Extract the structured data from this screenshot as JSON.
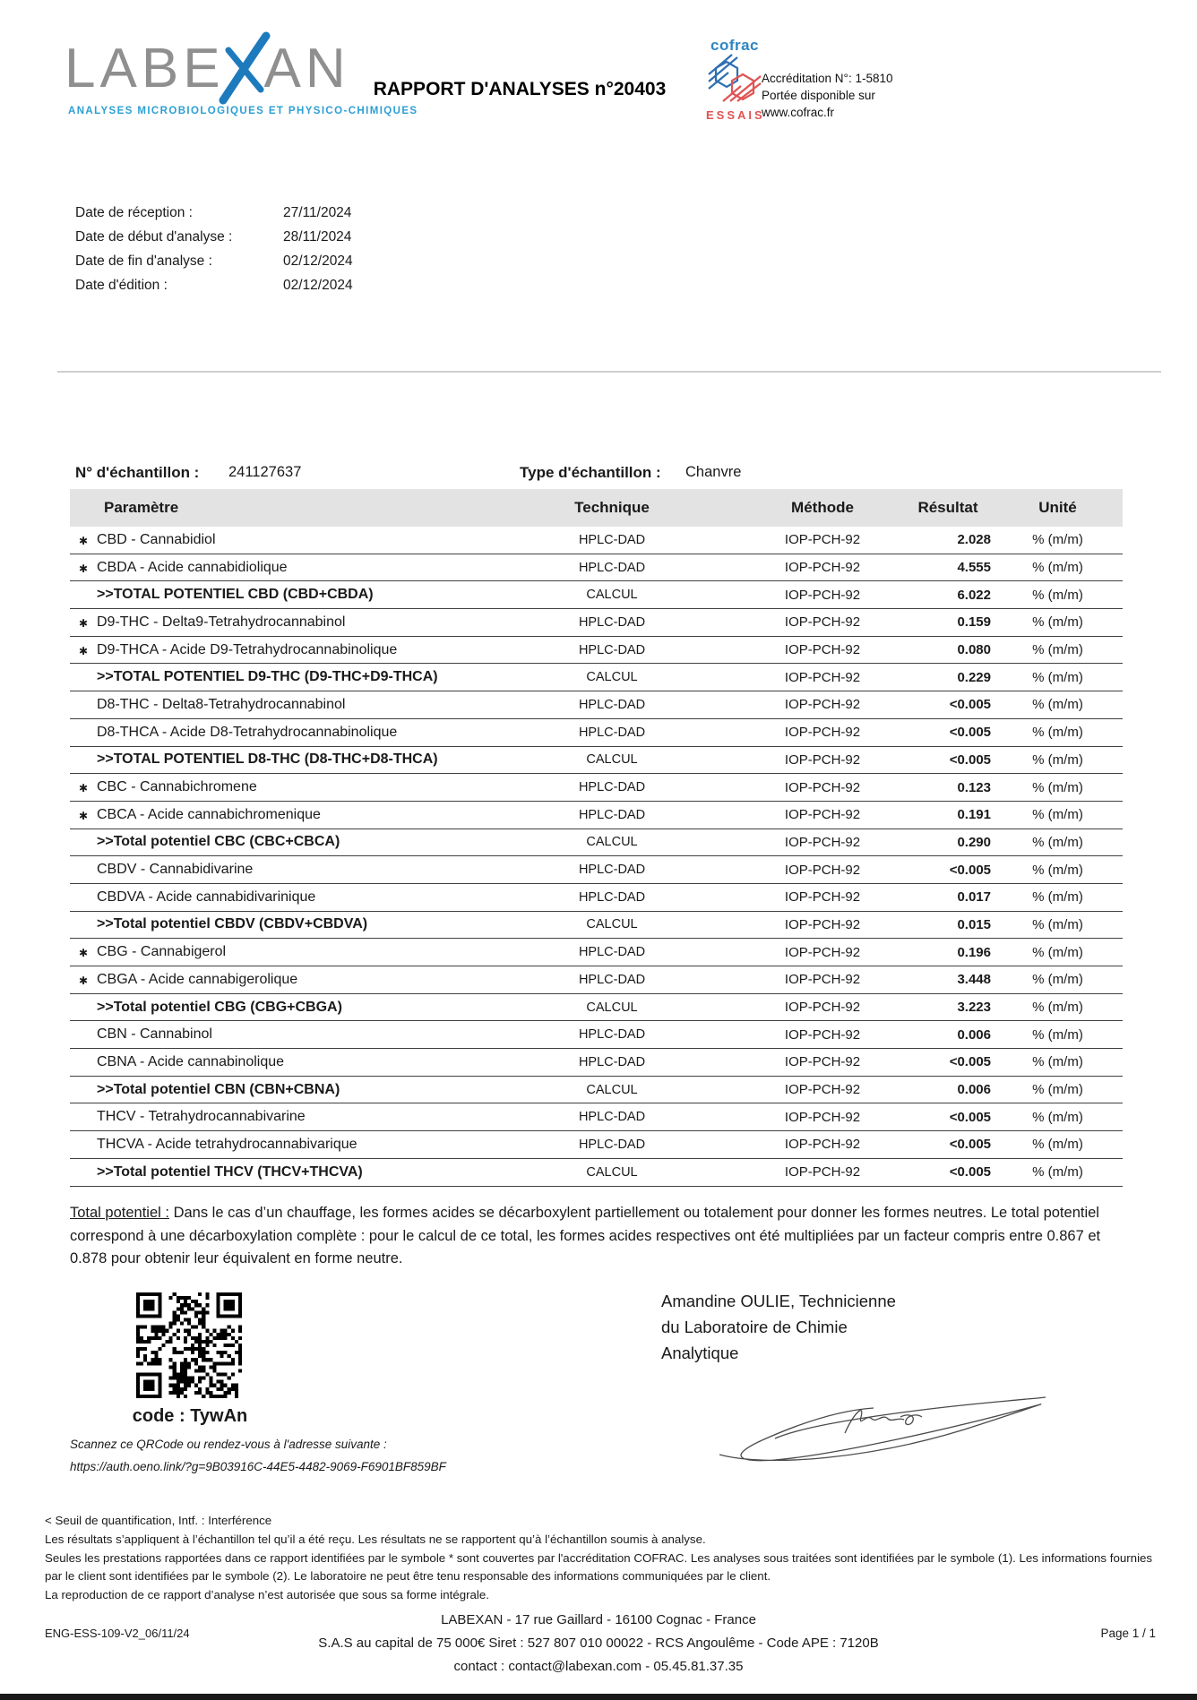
{
  "header": {
    "title": "RAPPORT D'ANALYSES n°20403",
    "logo": {
      "part1": "LABE",
      "part2": "AN",
      "subtitle": "ANALYSES MICROBIOLOGIQUES ET PHYSICO-CHIMIQUES"
    },
    "cofrac": {
      "word": "cofrac",
      "essais": "ESSAIS",
      "accreditation_line1": "Accréditation N°: 1-5810",
      "accreditation_line2": "Portée disponible sur",
      "accreditation_line3": "www.cofrac.fr"
    }
  },
  "dates": {
    "items": [
      {
        "label": "Date de réception :",
        "value": "27/11/2024"
      },
      {
        "label": "Date de début d'analyse :",
        "value": "28/11/2024"
      },
      {
        "label": "Date de fin d'analyse :",
        "value": "02/12/2024"
      },
      {
        "label": "Date d'édition :",
        "value": "02/12/2024"
      }
    ]
  },
  "sample": {
    "number_label": "N° d'échantillon :",
    "number": "241127637",
    "type_label": "Type d'échantillon :",
    "type": "Chanvre"
  },
  "table": {
    "headers": {
      "param": "Paramètre",
      "technique": "Technique",
      "methode": "Méthode",
      "resultat": "Résultat",
      "unite": "Unité"
    },
    "star_symbol": "✱",
    "method": "IOP-PCH-92",
    "unit": "% (m/m)",
    "rows": [
      {
        "star": true,
        "bold": false,
        "param": "CBD - Cannabidiol",
        "technique": "HPLC-DAD",
        "result": "2.028"
      },
      {
        "star": true,
        "bold": false,
        "param": "CBDA - Acide cannabidiolique",
        "technique": "HPLC-DAD",
        "result": "4.555"
      },
      {
        "star": false,
        "bold": true,
        "param": ">>TOTAL POTENTIEL CBD (CBD+CBDA)",
        "technique": "CALCUL",
        "result": "6.022"
      },
      {
        "star": true,
        "bold": false,
        "param": "D9-THC - Delta9-Tetrahydrocannabinol",
        "technique": "HPLC-DAD",
        "result": "0.159"
      },
      {
        "star": true,
        "bold": false,
        "param": "D9-THCA - Acide D9-Tetrahydrocannabinolique",
        "technique": "HPLC-DAD",
        "result": "0.080"
      },
      {
        "star": false,
        "bold": true,
        "param": ">>TOTAL POTENTIEL D9-THC (D9-THC+D9-THCA)",
        "technique": "CALCUL",
        "result": "0.229"
      },
      {
        "star": false,
        "bold": false,
        "param": "D8-THC - Delta8-Tetrahydrocannabinol",
        "technique": "HPLC-DAD",
        "result": "<0.005"
      },
      {
        "star": false,
        "bold": false,
        "param": "D8-THCA - Acide D8-Tetrahydrocannabinolique",
        "technique": "HPLC-DAD",
        "result": "<0.005"
      },
      {
        "star": false,
        "bold": true,
        "param": ">>TOTAL POTENTIEL D8-THC (D8-THC+D8-THCA)",
        "technique": "CALCUL",
        "result": "<0.005"
      },
      {
        "star": true,
        "bold": false,
        "param": "CBC - Cannabichromene",
        "technique": "HPLC-DAD",
        "result": "0.123"
      },
      {
        "star": true,
        "bold": false,
        "param": "CBCA - Acide cannabichromenique",
        "technique": "HPLC-DAD",
        "result": "0.191"
      },
      {
        "star": false,
        "bold": true,
        "param": ">>Total potentiel CBC (CBC+CBCA)",
        "technique": "CALCUL",
        "result": "0.290"
      },
      {
        "star": false,
        "bold": false,
        "param": "CBDV - Cannabidivarine",
        "technique": "HPLC-DAD",
        "result": "<0.005"
      },
      {
        "star": false,
        "bold": false,
        "param": "CBDVA - Acide cannabidivarinique",
        "technique": "HPLC-DAD",
        "result": "0.017"
      },
      {
        "star": false,
        "bold": true,
        "param": ">>Total potentiel CBDV (CBDV+CBDVA)",
        "technique": "CALCUL",
        "result": "0.015"
      },
      {
        "star": true,
        "bold": false,
        "param": "CBG - Cannabigerol",
        "technique": "HPLC-DAD",
        "result": "0.196"
      },
      {
        "star": true,
        "bold": false,
        "param": "CBGA - Acide cannabigerolique",
        "technique": "HPLC-DAD",
        "result": "3.448"
      },
      {
        "star": false,
        "bold": true,
        "param": ">>Total potentiel CBG (CBG+CBGA)",
        "technique": "CALCUL",
        "result": "3.223"
      },
      {
        "star": false,
        "bold": false,
        "param": "CBN - Cannabinol",
        "technique": "HPLC-DAD",
        "result": "0.006"
      },
      {
        "star": false,
        "bold": false,
        "param": "CBNA - Acide cannabinolique",
        "technique": "HPLC-DAD",
        "result": "<0.005"
      },
      {
        "star": false,
        "bold": true,
        "param": ">>Total potentiel CBN (CBN+CBNA)",
        "technique": "CALCUL",
        "result": "0.006"
      },
      {
        "star": false,
        "bold": false,
        "param": "THCV - Tetrahydrocannabivarine",
        "technique": "HPLC-DAD",
        "result": "<0.005"
      },
      {
        "star": false,
        "bold": false,
        "param": "THCVA - Acide tetrahydrocannabivarique",
        "technique": "HPLC-DAD",
        "result": "<0.005"
      },
      {
        "star": false,
        "bold": true,
        "param": ">>Total potentiel THCV (THCV+THCVA)",
        "technique": "CALCUL",
        "result": "<0.005"
      }
    ]
  },
  "note": {
    "label": "Total potentiel :",
    "text": " Dans le cas d’un chauffage, les formes acides se décarboxylent partiellement ou totalement pour donner les formes neutres. Le total potentiel correspond à une décarboxylation complète : pour le calcul de ce total, les formes acides respectives ont été multipliées par un facteur compris entre 0.867 et 0.878 pour obtenir leur équivalent en forme neutre."
  },
  "qr": {
    "caption": "code : TywAn",
    "scan_text": "Scannez ce QRCode ou rendez-vous à l'adresse suivante :",
    "url": "https://auth.oeno.link/?g=9B03916C-44E5-4482-9069-F6901BF859BF"
  },
  "signatory": {
    "line1": "Amandine OULIE, Technicienne",
    "line2": "du Laboratoire de Chimie",
    "line3": "Analytique"
  },
  "disclaimers": {
    "line1": "< Seuil de quantification, Intf. : Interférence",
    "line2": "Les résultats s’appliquent à l’échantillon tel qu’il a été reçu. Les résultats ne se rapportent qu’à l’échantillon soumis à analyse.",
    "line3": "Seules les prestations rapportées dans ce rapport identifiées par le symbole * sont couvertes par l'accréditation COFRAC. Les analyses sous traitées sont identifiées par le symbole (1). Les informations fournies par le client sont identifiées par le symbole (2). Le laboratoire ne peut être tenu responsable des informations communiquées par le client.",
    "line4": "La reproduction de ce rapport d’analyse n’est autorisée que sous sa forme intégrale."
  },
  "footer": {
    "doc_ref": "ENG-ESS-109-V2_06/11/24",
    "line1": "LABEXAN - 17 rue Gaillard - 16100 Cognac - France",
    "line2": "S.A.S au capital de 75 000€ Siret : 527 807 010 00022 - RCS Angoulême - Code APE : 7120B",
    "line3": "contact : contact@labexan.com - 05.45.81.37.35",
    "page": "Page 1 / 1"
  },
  "colors": {
    "logo_gray": "#8f8f8f",
    "logo_blue": "#1d7bbd",
    "subtitle_blue": "#2d9fd4",
    "cofrac_blue": "#2e6fb2",
    "cofrac_red": "#e05353",
    "table_header_bg": "#e3e3e3"
  }
}
